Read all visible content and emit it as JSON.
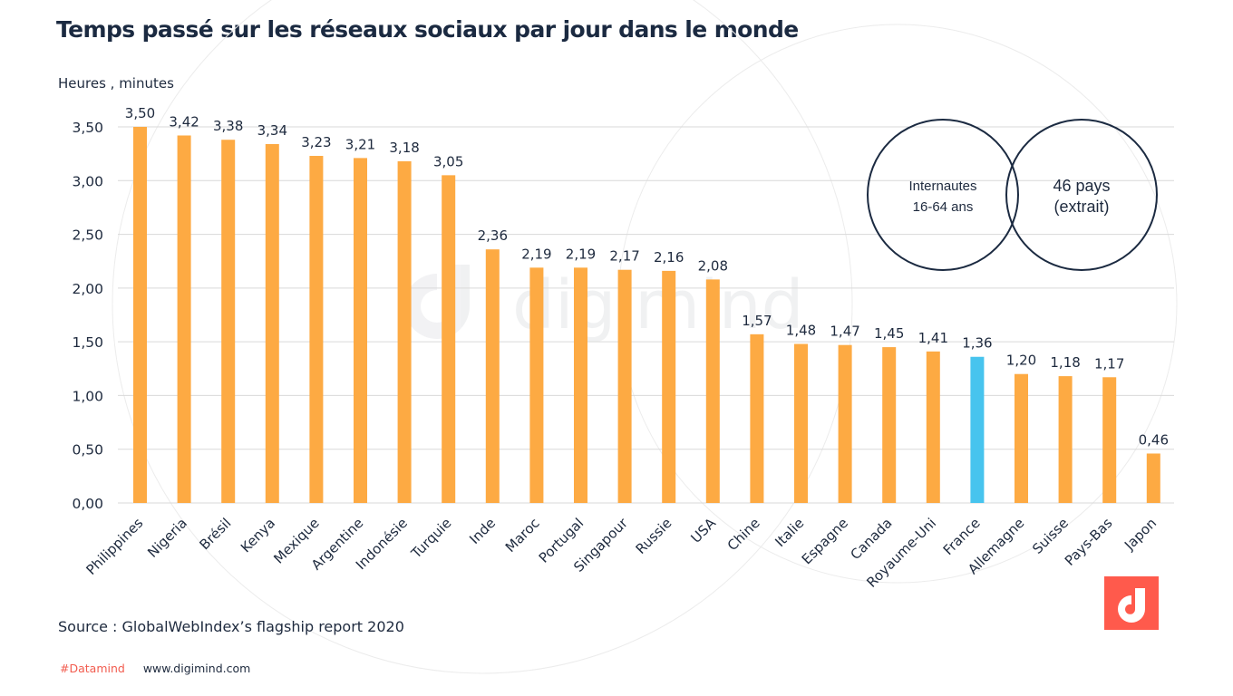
{
  "chart_data": {
    "type": "bar",
    "title": "Temps passé sur les réseaux sociaux par jour dans le monde",
    "ylabel": "Heures , minutes",
    "xlabel": "",
    "ylim": [
      0,
      3.5
    ],
    "yticks": [
      0,
      0.5,
      1,
      1.5,
      2,
      2.5,
      3,
      3.5
    ],
    "ytick_labels": [
      "0,00",
      "0,50",
      "1,00",
      "1,50",
      "2,00",
      "2,50",
      "3,00",
      "3,50"
    ],
    "grid": true,
    "legend": "none",
    "categories": [
      "Philippines",
      "Nigeria",
      "Brésil",
      "Kenya",
      "Mexique",
      "Argentine",
      "Indonésie",
      "Turquie",
      "Inde",
      "Maroc",
      "Portugal",
      "Singapour",
      "Russie",
      "USA",
      "Chine",
      "Italie",
      "Espagne",
      "Canada",
      "Royaume-Uni",
      "France",
      "Allemagne",
      "Suisse",
      "Pays-Bas",
      "Japon"
    ],
    "values": [
      3.5,
      3.42,
      3.38,
      3.34,
      3.23,
      3.21,
      3.18,
      3.05,
      2.36,
      2.19,
      2.19,
      2.17,
      2.16,
      2.08,
      1.57,
      1.48,
      1.47,
      1.45,
      1.41,
      1.36,
      1.2,
      1.18,
      1.17,
      0.46
    ],
    "value_labels": [
      "3,50",
      "3,42",
      "3,38",
      "3,34",
      "3,23",
      "3,21",
      "3,18",
      "3,05",
      "2,36",
      "2,19",
      "2,19",
      "2,17",
      "2,16",
      "2,08",
      "1,57",
      "1,48",
      "1,47",
      "1,45",
      "1,41",
      "1,36",
      "1,20",
      "1,18",
      "1,17",
      "0,46"
    ],
    "highlight_category": "France",
    "colors": {
      "default": "#fdaa43",
      "highlight": "#47c4ee",
      "grid": "#d9d9d9",
      "text": "#1e2a3e"
    },
    "annotations": [
      {
        "text_lines": [
          "Internautes",
          "16-64 ans"
        ]
      },
      {
        "text_lines": [
          "46 pays",
          "(extrait)"
        ]
      }
    ]
  },
  "header": {
    "title": "Temps passé sur les réseaux sociaux par jour dans le monde",
    "unit_label": "Heures , minutes"
  },
  "footer": {
    "source": "Source : GlobalWebIndex’s flagship report 2020",
    "hashtag": "#Datamind",
    "website": "www.digimind.com"
  },
  "watermark": {
    "text": "digimind"
  },
  "brand": {
    "logo": "digimind-logo-icon",
    "accent": "#ff5a4c"
  }
}
